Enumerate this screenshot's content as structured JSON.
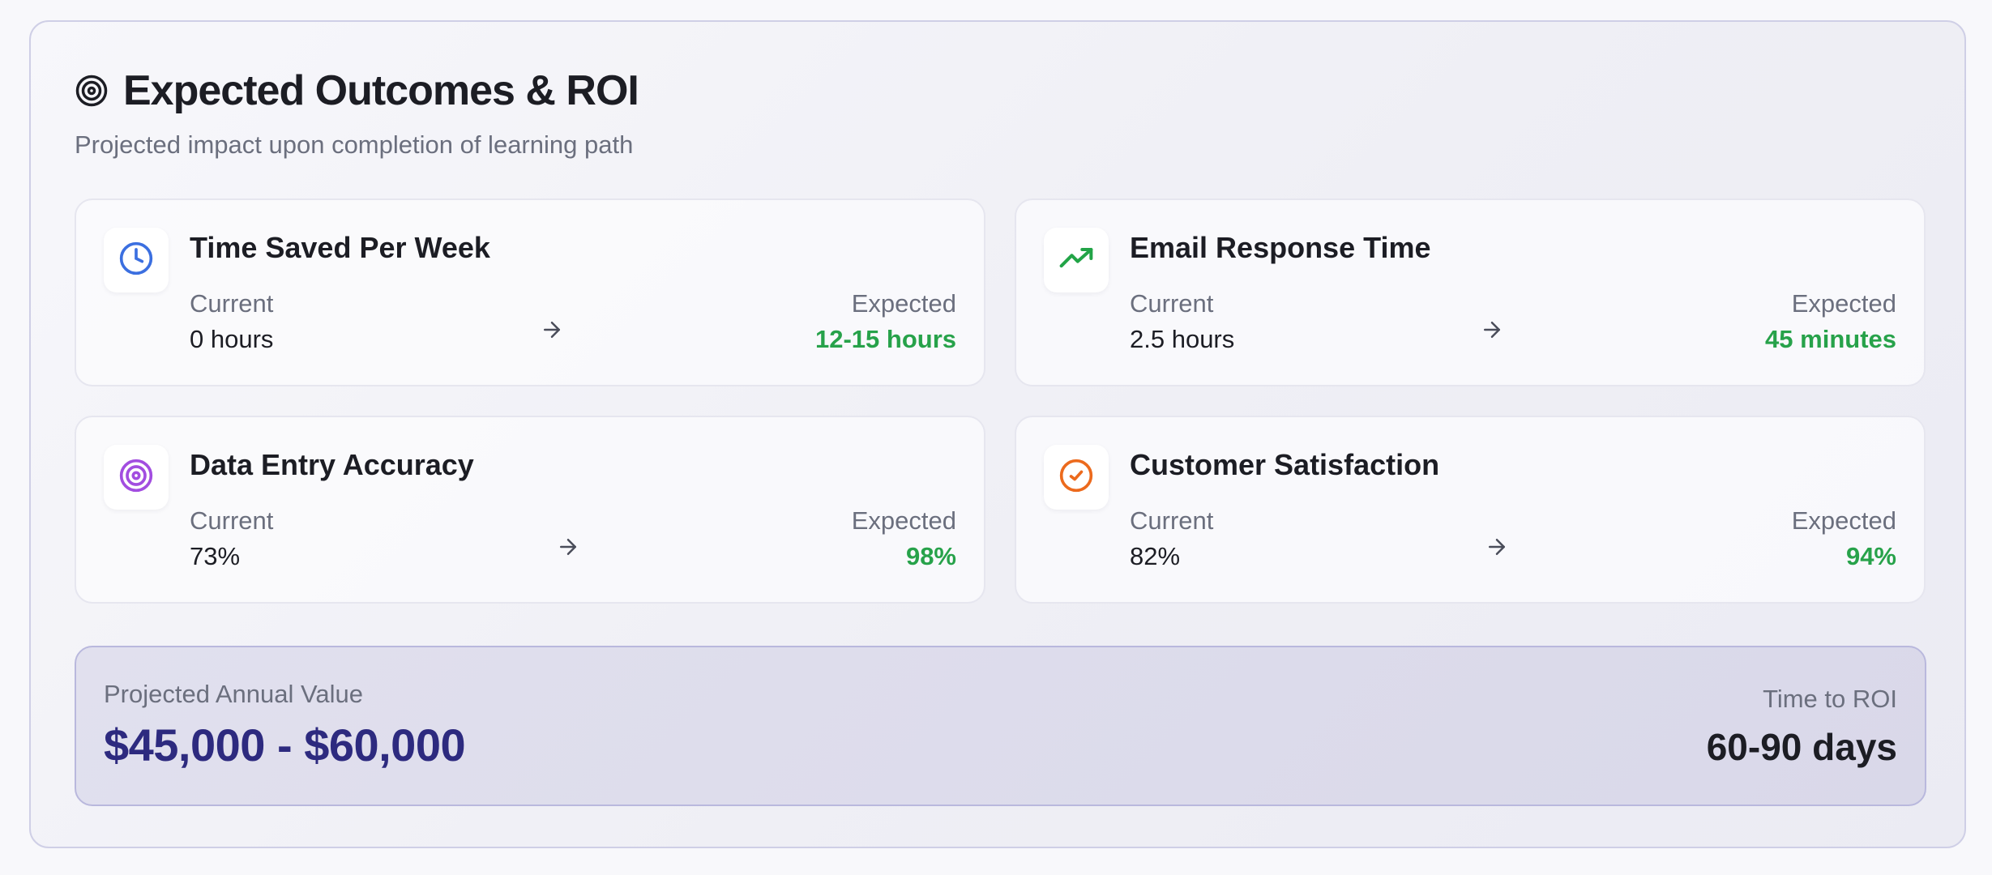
{
  "header": {
    "title": "Expected Outcomes & ROI",
    "subtitle": "Projected impact upon completion of learning path",
    "icon": "target-icon"
  },
  "metrics": [
    {
      "title": "Time Saved Per Week",
      "icon": "clock-icon",
      "icon_color": "#3b6fe0",
      "current_label": "Current",
      "current_value": "0 hours",
      "expected_label": "Expected",
      "expected_value": "12-15 hours"
    },
    {
      "title": "Email Response Time",
      "icon": "trending-up-icon",
      "icon_color": "#22a447",
      "current_label": "Current",
      "current_value": "2.5 hours",
      "expected_label": "Expected",
      "expected_value": "45 minutes"
    },
    {
      "title": "Data Entry Accuracy",
      "icon": "target-icon",
      "icon_color": "#a24de0",
      "current_label": "Current",
      "current_value": "73%",
      "expected_label": "Expected",
      "expected_value": "98%"
    },
    {
      "title": "Customer Satisfaction",
      "icon": "check-circle-icon",
      "icon_color": "#ec6a1d",
      "current_label": "Current",
      "current_value": "82%",
      "expected_label": "Expected",
      "expected_value": "94%"
    }
  ],
  "summary": {
    "annual_label": "Projected Annual Value",
    "annual_value": "$45,000 - $60,000",
    "roi_label": "Time to ROI",
    "roi_value": "60-90 days"
  },
  "colors": {
    "expected_value": "#27a24a",
    "annual_value": "#2d2a7f",
    "muted_text": "#6b6f7e"
  }
}
